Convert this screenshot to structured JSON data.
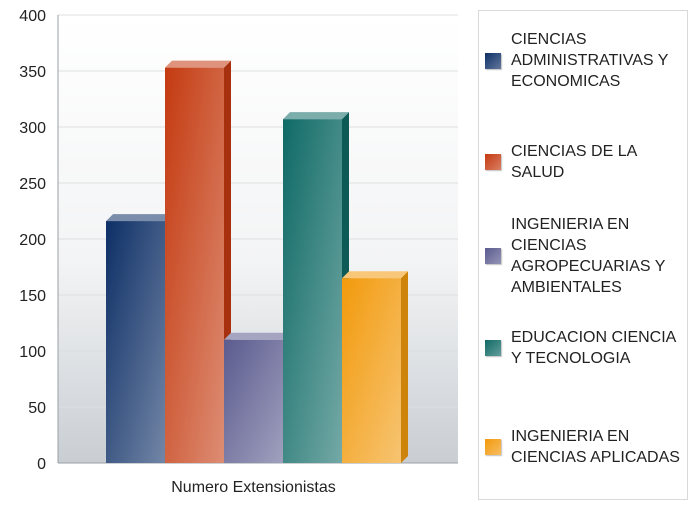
{
  "chart_data": {
    "type": "bar",
    "categories": [
      "Numero Extensionistas"
    ],
    "series": [
      {
        "name": "CIENCIAS ADMINISTRATIVAS Y ECONOMICAS",
        "values": [
          216
        ],
        "color": "#0d2f66"
      },
      {
        "name": "CIENCIAS DE LA SALUD",
        "values": [
          353
        ],
        "color": "#c43a10"
      },
      {
        "name": "INGENIERIA EN CIENCIAS AGROPECUARIAS Y AMBIENTALES",
        "values": [
          110
        ],
        "color": "#5b5b8f"
      },
      {
        "name": "EDUCACION CIENCIA Y TECNOLOGIA",
        "values": [
          307
        ],
        "color": "#0f6a66"
      },
      {
        "name": "INGENIERIA EN CIENCIAS APLICADAS",
        "values": [
          165
        ],
        "color": "#f29a0c"
      }
    ],
    "ylim": [
      0,
      400
    ],
    "yticks": [
      "0",
      "50",
      "100",
      "150",
      "200",
      "250",
      "300",
      "350",
      "400"
    ],
    "grid": true,
    "legend_position": "right",
    "effect": "3d"
  }
}
